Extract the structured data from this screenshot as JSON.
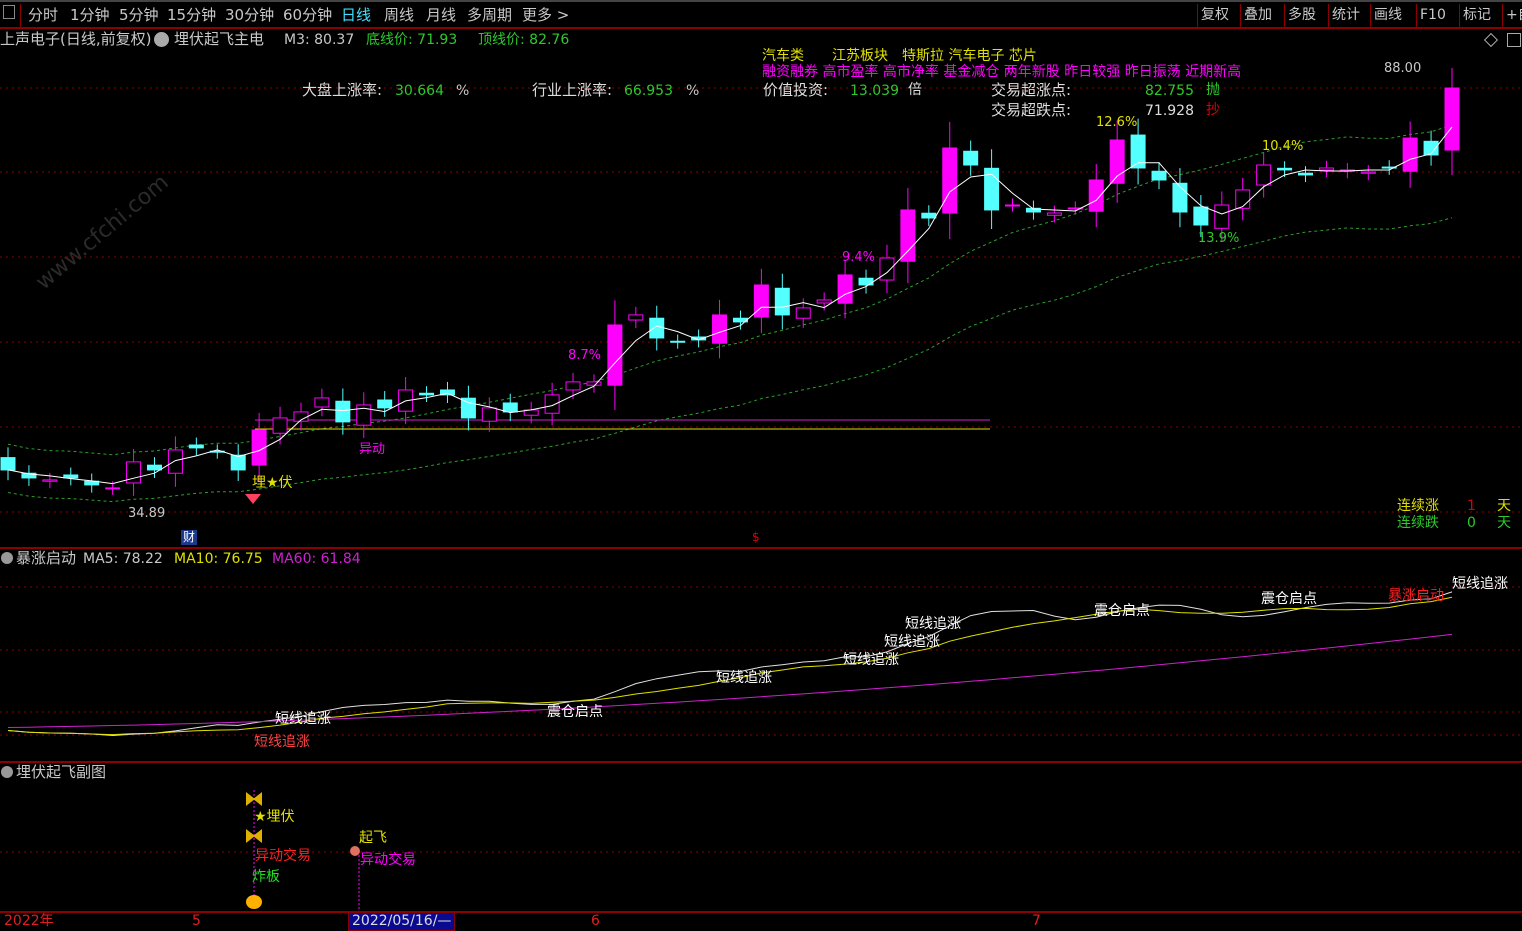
{
  "toolbar": {
    "left_tabs": [
      "分时",
      "1分钟",
      "5分钟",
      "15分钟",
      "30分钟",
      "60分钟",
      "日线",
      "周线",
      "月线",
      "多周期",
      "更多 >"
    ],
    "active_tab": "日线",
    "right_buttons": [
      "复权",
      "叠加",
      "多股",
      "统计",
      "画线",
      "F10",
      "标记",
      "+自"
    ]
  },
  "info": {
    "title": "上声电子(日线,前复权)",
    "indicator": "埋伏起飞主电",
    "m3": "M3: 80.37",
    "bottom_price": "底线价: 71.93",
    "top_price": "顶线价: 82.76"
  },
  "stats": {
    "market_rise_label": "大盘上涨率:",
    "market_rise_value": "30.664",
    "pct1": "%",
    "industry_rise_label": "行业上涨率:",
    "industry_rise_value": "66.953",
    "pct2": "%",
    "value_label": "价值投资:",
    "value_value": "13.039",
    "value_unit": "倍",
    "over_rise_label": "交易超涨点:",
    "over_rise_value": "82.755",
    "over_rise_tag": "抛",
    "over_fall_label": "交易超跌点:",
    "over_fall_value": "71.928",
    "over_fall_tag": "抄"
  },
  "concepts": {
    "line1": "汽车类　　江苏板块　特斯拉 汽车电子 芯片",
    "line2": "融资融券 高市盈率 高市净率 基金减仓 两年新股 昨日较强 昨日振荡 近期新高"
  },
  "price_labels": {
    "high": "88.00",
    "low": "34.89",
    "pct_labels": [
      "8.7%",
      "9.4%",
      "12.6%",
      "10.4%",
      "13.9%"
    ]
  },
  "markers": {
    "maifu": "埋★伏",
    "yidong": "异动",
    "cai": "财",
    "dollar": "$"
  },
  "streak": {
    "up_label": "连续涨",
    "up_value": "1",
    "up_unit": "天",
    "down_label": "连续跌",
    "down_value": "0",
    "down_unit": "天"
  },
  "panel2": {
    "name": "暴涨启动",
    "ma5": "MA5: 78.22",
    "ma10": "MA10: 76.75",
    "ma60": "MA60: 61.84",
    "signals": [
      "短线追涨",
      "短线追涨",
      "震仓启点",
      "短线追涨",
      "短线追涨",
      "短线追涨",
      "短线追涨",
      "震仓启点",
      "震仓启点",
      "暴涨启动",
      "短线追涨"
    ]
  },
  "panel3": {
    "name": "埋伏起飞副图",
    "signals": [
      "★埋伏",
      "异动交易",
      "炸板",
      "起飞",
      "异动交易"
    ]
  },
  "axis": {
    "labels": [
      "2022年",
      "5",
      "2022/05/16/—",
      "6",
      "7"
    ]
  },
  "watermark": "www.cfchi.com",
  "colors": {
    "up": "#ff00ff",
    "down": "#54ffff",
    "ma_white": "#e0e0e0",
    "ma_yellow": "#e0e000",
    "ma_magenta": "#d020d0",
    "band": "#2aa02a",
    "grid": "#8b0000"
  },
  "chart_data": {
    "type": "candlestick",
    "closes": [
      39.15,
      38.18,
      37.94,
      38.18,
      37.33,
      36.97,
      40.13,
      39.15,
      41.58,
      41.83,
      41.34,
      39.15,
      44.01,
      45.47,
      46.2,
      47.9,
      44.99,
      47.05,
      46.69,
      48.87,
      48.27,
      48.27,
      45.47,
      46.69,
      46.2,
      46.44,
      48.27,
      49.85,
      49.85,
      56.77,
      57.99,
      55.19,
      54.71,
      54.95,
      57.99,
      57.14,
      61.63,
      57.99,
      58.84,
      59.81,
      62.85,
      61.63,
      64.91,
      70.75,
      69.77,
      78.28,
      76.21,
      70.75,
      71.35,
      70.5,
      70.38,
      70.99,
      74.39,
      79.25,
      75.85,
      74.39,
      70.5,
      68.92,
      71.35,
      73.18,
      76.21,
      75.61,
      75.0,
      75.85,
      75.61,
      75.36,
      75.85,
      79.49,
      77.43,
      85.57
    ],
    "ylim": [
      34.89,
      88.0
    ]
  }
}
